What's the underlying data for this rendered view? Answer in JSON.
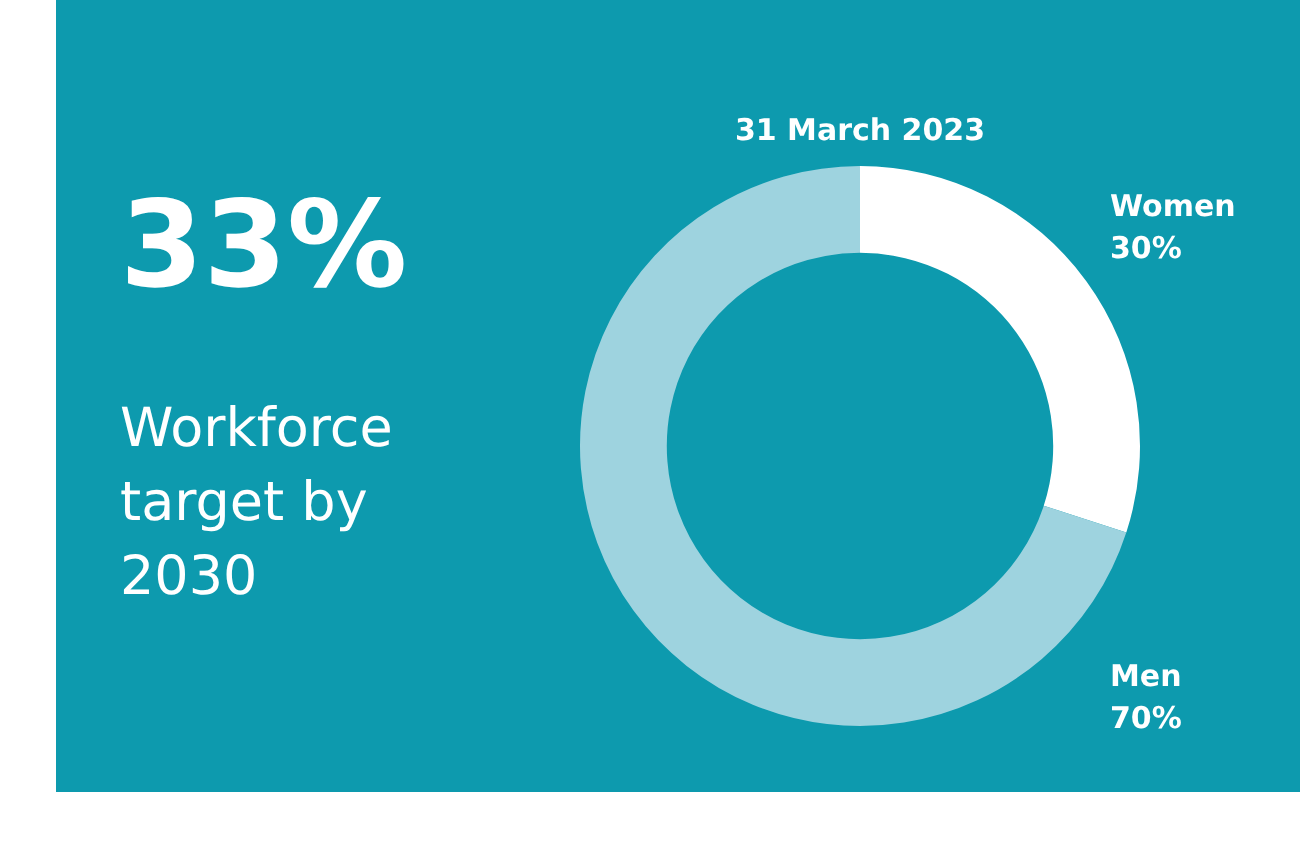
{
  "chart_data": {
    "type": "donut",
    "title": "31 March 2023",
    "categories": [
      "Women",
      "Men"
    ],
    "values": [
      30,
      70
    ],
    "colors": [
      "#ffffff",
      "#9ed3df"
    ],
    "value_labels": [
      "30%",
      "70%"
    ],
    "legend": false,
    "annotations": [
      "33%",
      "Workforce target by 2030"
    ]
  }
}
